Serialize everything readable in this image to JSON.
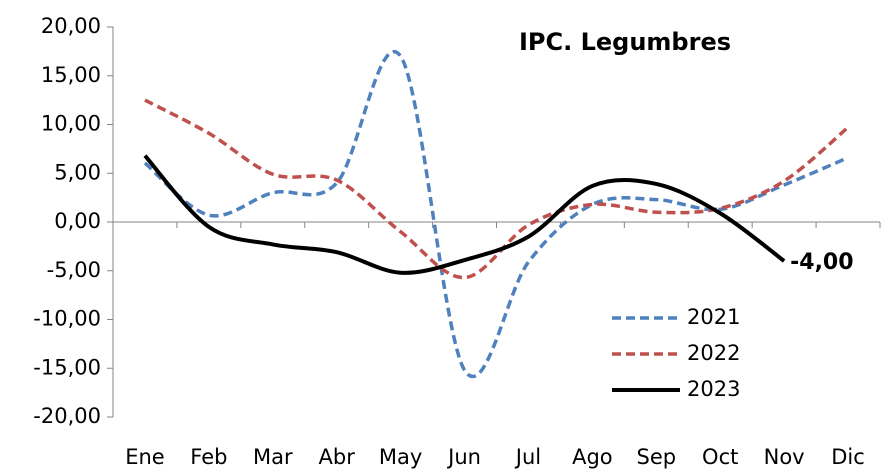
{
  "chart_data": {
    "type": "line",
    "title": "IPC. Legumbres",
    "categories": [
      "Ene",
      "Feb",
      "Mar",
      "Abr",
      "May",
      "Jun",
      "Jul",
      "Ago",
      "Sep",
      "Oct",
      "Nov",
      "Dic"
    ],
    "series": [
      {
        "name": "2021",
        "color": "#4f81bd",
        "dash": true,
        "values": [
          6.05,
          0.7,
          3.0,
          4.0,
          17.0,
          -15.2,
          -4.1,
          1.8,
          2.3,
          1.3,
          3.8,
          6.6
        ]
      },
      {
        "name": "2022",
        "color": "#c0504d",
        "dash": true,
        "values": [
          12.5,
          9.1,
          4.9,
          4.3,
          -1.0,
          -5.7,
          -0.3,
          1.8,
          1.0,
          1.4,
          4.2,
          9.7
        ]
      },
      {
        "name": "2023",
        "color": "#000000",
        "dash": false,
        "values": [
          6.8,
          -0.5,
          -2.3,
          -3.1,
          -5.2,
          -3.9,
          -1.5,
          3.7,
          3.9,
          0.9,
          -4.0,
          null
        ],
        "value_labels": [
          null,
          null,
          null,
          null,
          null,
          null,
          null,
          null,
          null,
          null,
          "-4,00",
          null
        ]
      }
    ],
    "ylim": [
      -20,
      20
    ],
    "yticks": [
      {
        "value": -20,
        "label": "-20,00"
      },
      {
        "value": -15,
        "label": "-15,00"
      },
      {
        "value": -10,
        "label": "-10,00"
      },
      {
        "value": -5,
        "label": "-5,00"
      },
      {
        "value": 0,
        "label": "0,00"
      },
      {
        "value": 5,
        "label": "5,00"
      },
      {
        "value": 10,
        "label": "10,00"
      },
      {
        "value": 15,
        "label": "15,00"
      },
      {
        "value": 20,
        "label": "20,00"
      }
    ]
  }
}
